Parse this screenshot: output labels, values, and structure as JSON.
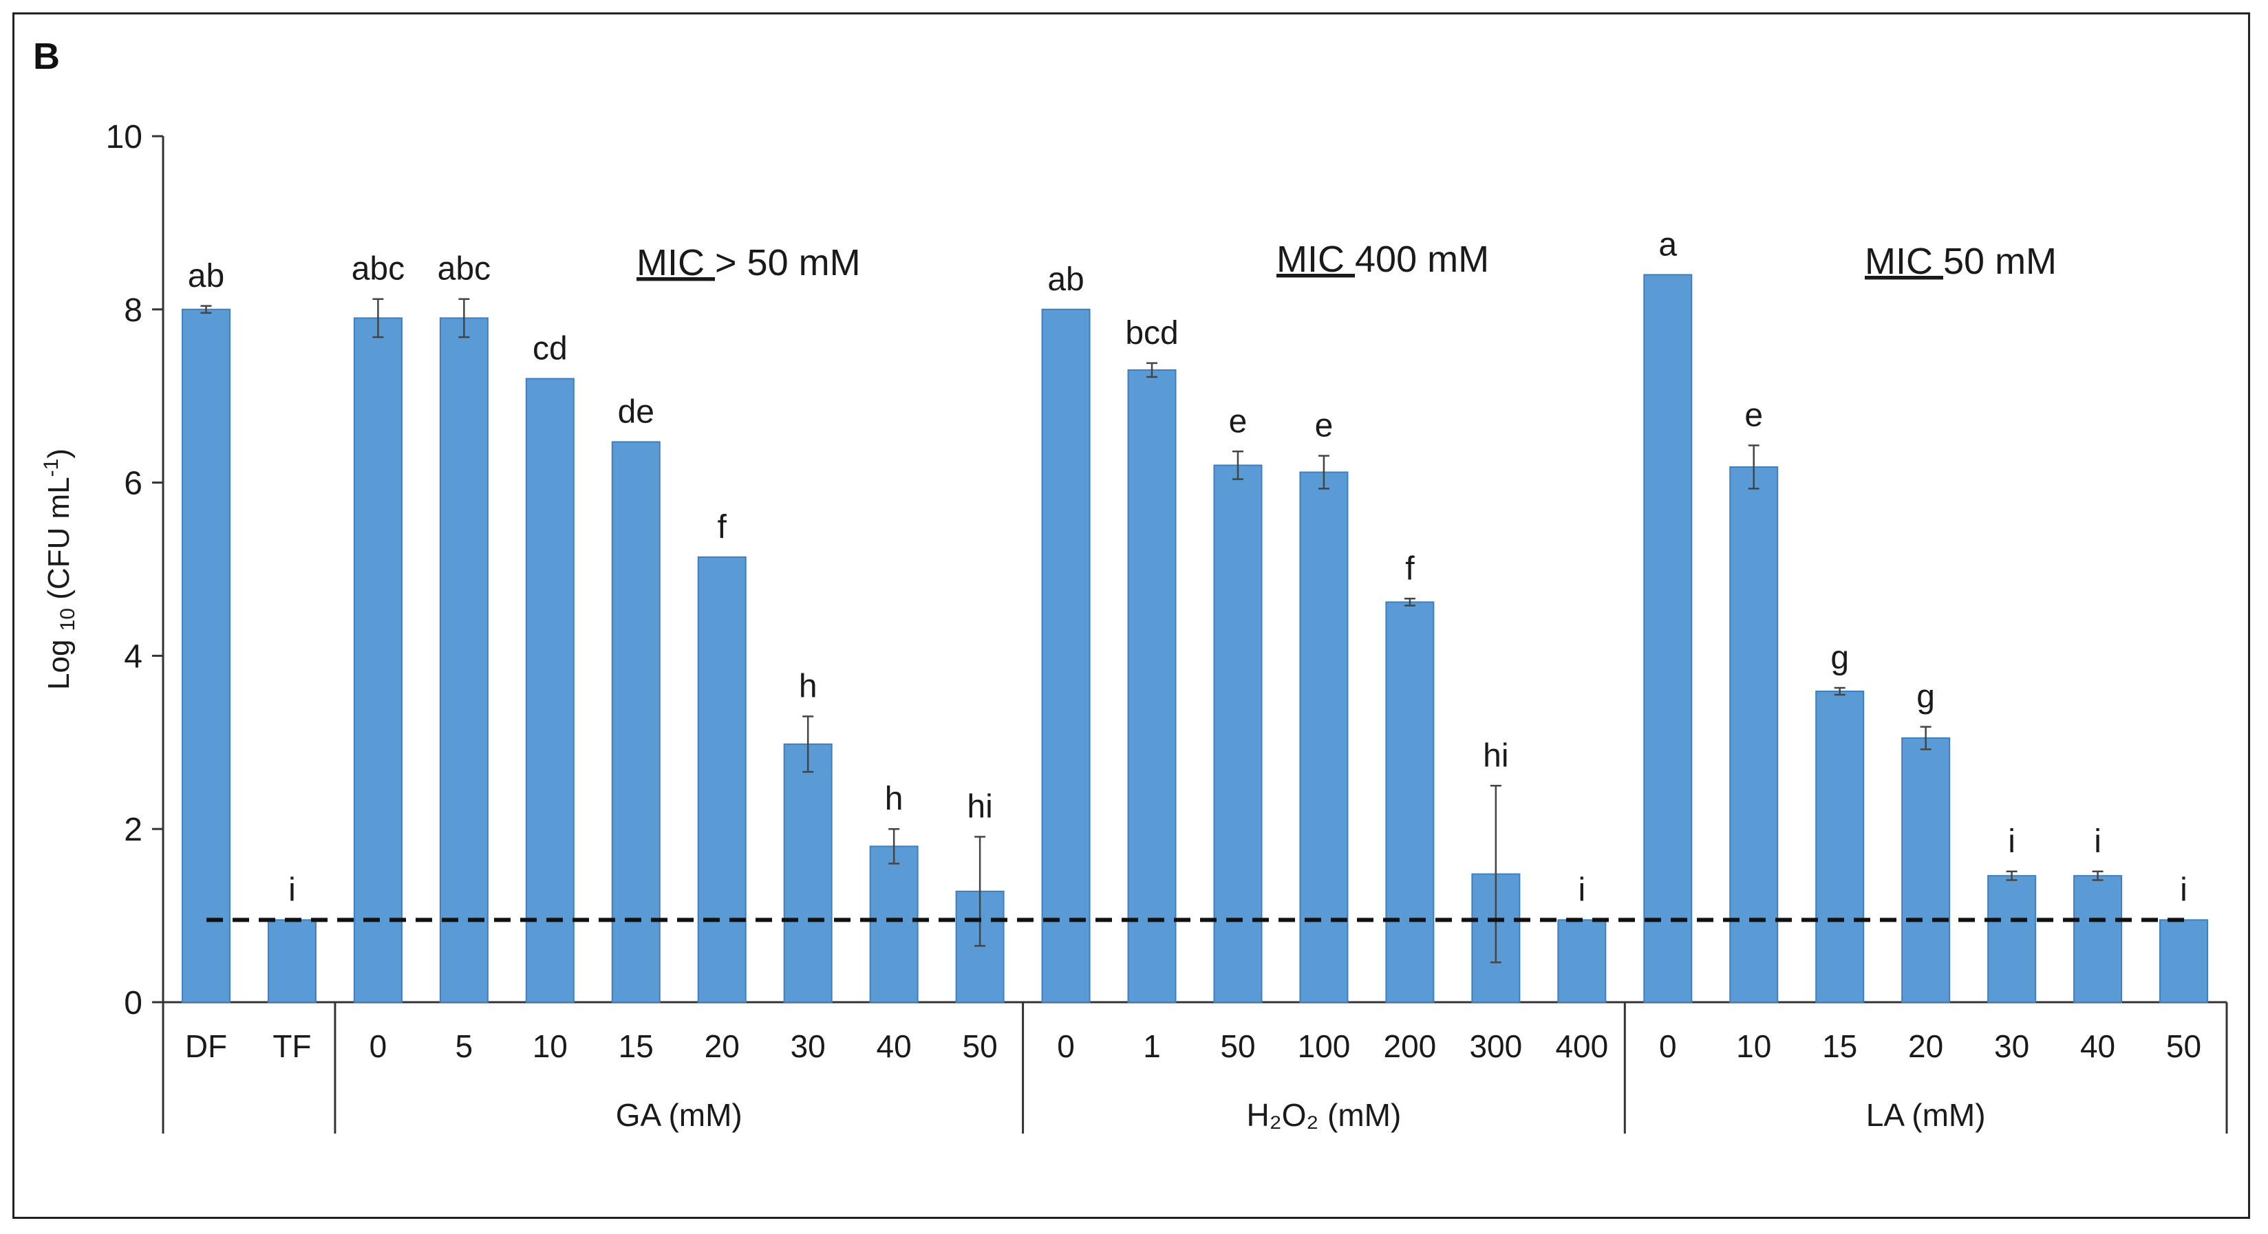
{
  "panel_label": "B",
  "chart_data": {
    "type": "bar",
    "title": "",
    "ylabel_parts": {
      "prefix": "Log",
      "subscript": "10",
      "suffix": " (CFU mL",
      "superscript": "-1",
      "close": ")"
    },
    "ylim": [
      0,
      10
    ],
    "yticks": [
      "0",
      "2",
      "4",
      "6",
      "8",
      "10"
    ],
    "bar_color": "#5b9bd5",
    "detection_limit": 0.95,
    "categories": [
      "DF",
      "TF",
      "0",
      "5",
      "10",
      "15",
      "20",
      "30",
      "40",
      "50",
      "0",
      "1",
      "50",
      "100",
      "200",
      "300",
      "400",
      "0",
      "10",
      "15",
      "20",
      "30",
      "40",
      "50"
    ],
    "values": [
      8.0,
      0.95,
      7.9,
      7.9,
      7.2,
      6.47,
      5.14,
      2.98,
      1.8,
      1.28,
      8.0,
      7.3,
      6.2,
      6.12,
      4.62,
      1.48,
      0.95,
      8.4,
      6.18,
      3.59,
      3.05,
      1.46,
      1.46,
      0.95
    ],
    "errors": [
      0.04,
      0.0,
      0.22,
      0.22,
      0.0,
      0.0,
      0.0,
      0.32,
      0.2,
      0.63,
      0.0,
      0.08,
      0.16,
      0.19,
      0.04,
      1.02,
      0.0,
      0.0,
      0.25,
      0.04,
      0.13,
      0.05,
      0.05,
      0.0
    ],
    "significance_letters": [
      "ab",
      "i",
      "abc",
      "abc",
      "cd",
      "de",
      "f",
      "h",
      "h",
      "hi",
      "ab",
      "bcd",
      "e",
      "e",
      "f",
      "hi",
      "i",
      "a",
      "e",
      "g",
      "g",
      "i",
      "i",
      "i"
    ],
    "groups": [
      {
        "name": "",
        "start": 0,
        "end": 1
      },
      {
        "name": "GA (mM)",
        "start": 2,
        "end": 9
      },
      {
        "name": "H₂O₂ (mM)",
        "start": 10,
        "end": 16
      },
      {
        "name": "LA (mM)",
        "start": 17,
        "end": 23
      }
    ],
    "annotations": [
      {
        "underlined": "MIC ",
        "rest": "> 50 mM",
        "group": 1
      },
      {
        "underlined": "MIC ",
        "rest": "400 mM",
        "group": 2
      },
      {
        "underlined": "MIC ",
        "rest": "50 mM",
        "group": 3
      }
    ]
  }
}
